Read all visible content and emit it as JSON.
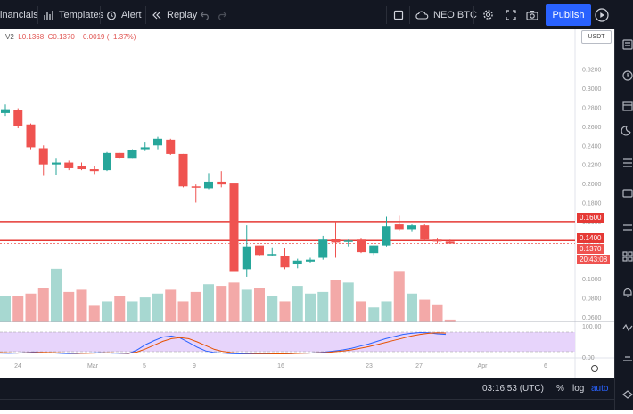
{
  "toolbar": {
    "financials_label": "inancials",
    "templates_label": "Templates",
    "alert_label": "Alert",
    "replay_label": "Replay",
    "symbol_label": "NEO BTC",
    "publish_label": "Publish",
    "icons": [
      "templates-grid-icon",
      "alert-clock-icon",
      "replay-rewind-icon",
      "undo-icon",
      "redo-icon",
      "square-icon",
      "cloud-icon",
      "gear-icon",
      "fullscreen-icon",
      "camera-icon",
      "play-circle-icon"
    ]
  },
  "legend": {
    "prefix": "V2",
    "low": "L0.1368",
    "close": "C0.1370",
    "change": "−0.0019 (−1.37%)"
  },
  "currency_badge": "USDT",
  "price_scale": {
    "ticks": [
      "0.3200",
      "0.3000",
      "0.2800",
      "0.2600",
      "0.2400",
      "0.2200",
      "0.2000",
      "0.1800",
      "0.1600",
      "0.1400",
      "0.1200",
      "0.1000",
      "0.0800",
      "0.0600"
    ],
    "range": [
      0.058,
      0.33
    ]
  },
  "time_axis": {
    "labels": [
      "24",
      "Mar",
      "5",
      "9",
      "16",
      "23",
      "27",
      "Apr",
      "6"
    ]
  },
  "price_tags": {
    "line_high": "0.1600",
    "line_low": "0.1400",
    "last_price": "0.1370",
    "countdown": "20:43:08"
  },
  "indicator_scale": [
    "100.00",
    "0.00"
  ],
  "bottom_bar": {
    "clock": "03:16:53 (UTC)",
    "percent_label": "%",
    "log_label": "log",
    "auto_label": "auto"
  },
  "colors": {
    "up": "#26a69a",
    "down": "#ef5350",
    "up_volume": "#a7d8d1",
    "down_volume": "#f3a9a8",
    "line_red": "#e53935",
    "toolbar_bg": "#131722",
    "publish_blue": "#2962ff",
    "stoch_fill": "#e7d4fb"
  },
  "chart_data": {
    "type": "candlestick",
    "series": [
      {
        "o": 0.274,
        "h": 0.283,
        "l": 0.271,
        "c": 0.278
      },
      {
        "o": 0.277,
        "h": 0.279,
        "l": 0.258,
        "c": 0.26
      },
      {
        "o": 0.262,
        "h": 0.263,
        "l": 0.236,
        "c": 0.238
      },
      {
        "o": 0.237,
        "h": 0.24,
        "l": 0.208,
        "c": 0.22
      },
      {
        "o": 0.22,
        "h": 0.226,
        "l": 0.209,
        "c": 0.222
      },
      {
        "o": 0.222,
        "h": 0.224,
        "l": 0.214,
        "c": 0.216
      },
      {
        "o": 0.218,
        "h": 0.222,
        "l": 0.214,
        "c": 0.215
      },
      {
        "o": 0.215,
        "h": 0.218,
        "l": 0.21,
        "c": 0.213
      },
      {
        "o": 0.214,
        "h": 0.233,
        "l": 0.213,
        "c": 0.232
      },
      {
        "o": 0.232,
        "h": 0.232,
        "l": 0.226,
        "c": 0.227
      },
      {
        "o": 0.226,
        "h": 0.236,
        "l": 0.226,
        "c": 0.235
      },
      {
        "o": 0.236,
        "h": 0.243,
        "l": 0.234,
        "c": 0.238
      },
      {
        "o": 0.24,
        "h": 0.249,
        "l": 0.236,
        "c": 0.247
      },
      {
        "o": 0.246,
        "h": 0.247,
        "l": 0.23,
        "c": 0.231
      },
      {
        "o": 0.231,
        "h": 0.231,
        "l": 0.196,
        "c": 0.197
      },
      {
        "o": 0.197,
        "h": 0.199,
        "l": 0.18,
        "c": 0.196
      },
      {
        "o": 0.195,
        "h": 0.211,
        "l": 0.194,
        "c": 0.202
      },
      {
        "o": 0.202,
        "h": 0.213,
        "l": 0.196,
        "c": 0.199
      },
      {
        "o": 0.2,
        "h": 0.2,
        "l": 0.094,
        "c": 0.108
      },
      {
        "o": 0.11,
        "h": 0.156,
        "l": 0.102,
        "c": 0.134
      },
      {
        "o": 0.135,
        "h": 0.135,
        "l": 0.124,
        "c": 0.125
      },
      {
        "o": 0.126,
        "h": 0.133,
        "l": 0.124,
        "c": 0.126
      },
      {
        "o": 0.124,
        "h": 0.132,
        "l": 0.11,
        "c": 0.112
      },
      {
        "o": 0.115,
        "h": 0.121,
        "l": 0.111,
        "c": 0.119
      },
      {
        "o": 0.118,
        "h": 0.122,
        "l": 0.117,
        "c": 0.12
      },
      {
        "o": 0.122,
        "h": 0.145,
        "l": 0.12,
        "c": 0.141
      },
      {
        "o": 0.142,
        "h": 0.16,
        "l": 0.122,
        "c": 0.138
      },
      {
        "o": 0.139,
        "h": 0.141,
        "l": 0.134,
        "c": 0.14
      },
      {
        "o": 0.141,
        "h": 0.143,
        "l": 0.127,
        "c": 0.128
      },
      {
        "o": 0.127,
        "h": 0.135,
        "l": 0.125,
        "c": 0.135
      },
      {
        "o": 0.135,
        "h": 0.165,
        "l": 0.134,
        "c": 0.155
      },
      {
        "o": 0.157,
        "h": 0.166,
        "l": 0.15,
        "c": 0.152
      },
      {
        "o": 0.152,
        "h": 0.157,
        "l": 0.149,
        "c": 0.156
      },
      {
        "o": 0.156,
        "h": 0.157,
        "l": 0.14,
        "c": 0.141
      },
      {
        "o": 0.141,
        "h": 0.143,
        "l": 0.137,
        "c": 0.139
      },
      {
        "o": 0.139,
        "h": 0.141,
        "l": 0.137,
        "c": 0.137
      }
    ],
    "volume_relative": [
      0.48,
      0.48,
      0.52,
      0.62,
      0.97,
      0.55,
      0.59,
      0.3,
      0.38,
      0.48,
      0.38,
      0.45,
      0.52,
      0.59,
      0.38,
      0.55,
      0.69,
      0.66,
      0.72,
      0.59,
      0.62,
      0.48,
      0.38,
      0.66,
      0.52,
      0.55,
      0.76,
      0.72,
      0.38,
      0.27,
      0.38,
      0.93,
      0.52,
      0.41,
      0.31,
      0.05
    ],
    "horizontal_lines": [
      0.16,
      0.14
    ],
    "last_price": 0.137,
    "stochastic": {
      "k": [
        8,
        7,
        8,
        10,
        12,
        10,
        9,
        7,
        6,
        6,
        8,
        9,
        10,
        8,
        7,
        6,
        20,
        40,
        55,
        68,
        72,
        65,
        48,
        30,
        16,
        10,
        8,
        6,
        5,
        5,
        5,
        5,
        5,
        5,
        6,
        8,
        8,
        10,
        12,
        16,
        20,
        26,
        34,
        42,
        52,
        62,
        70,
        78,
        82,
        85,
        84,
        80,
        78
      ],
      "d": [
        10,
        9,
        8,
        9,
        10,
        11,
        10,
        9,
        8,
        7,
        7,
        8,
        9,
        9,
        8,
        7,
        12,
        24,
        38,
        52,
        62,
        66,
        62,
        50,
        36,
        22,
        14,
        10,
        8,
        7,
        6,
        6,
        5,
        5,
        6,
        7,
        8,
        9,
        10,
        13,
        16,
        20,
        26,
        32,
        40,
        48,
        56,
        64,
        72,
        78,
        82,
        84,
        83
      ],
      "range": [
        0,
        100
      ]
    }
  }
}
